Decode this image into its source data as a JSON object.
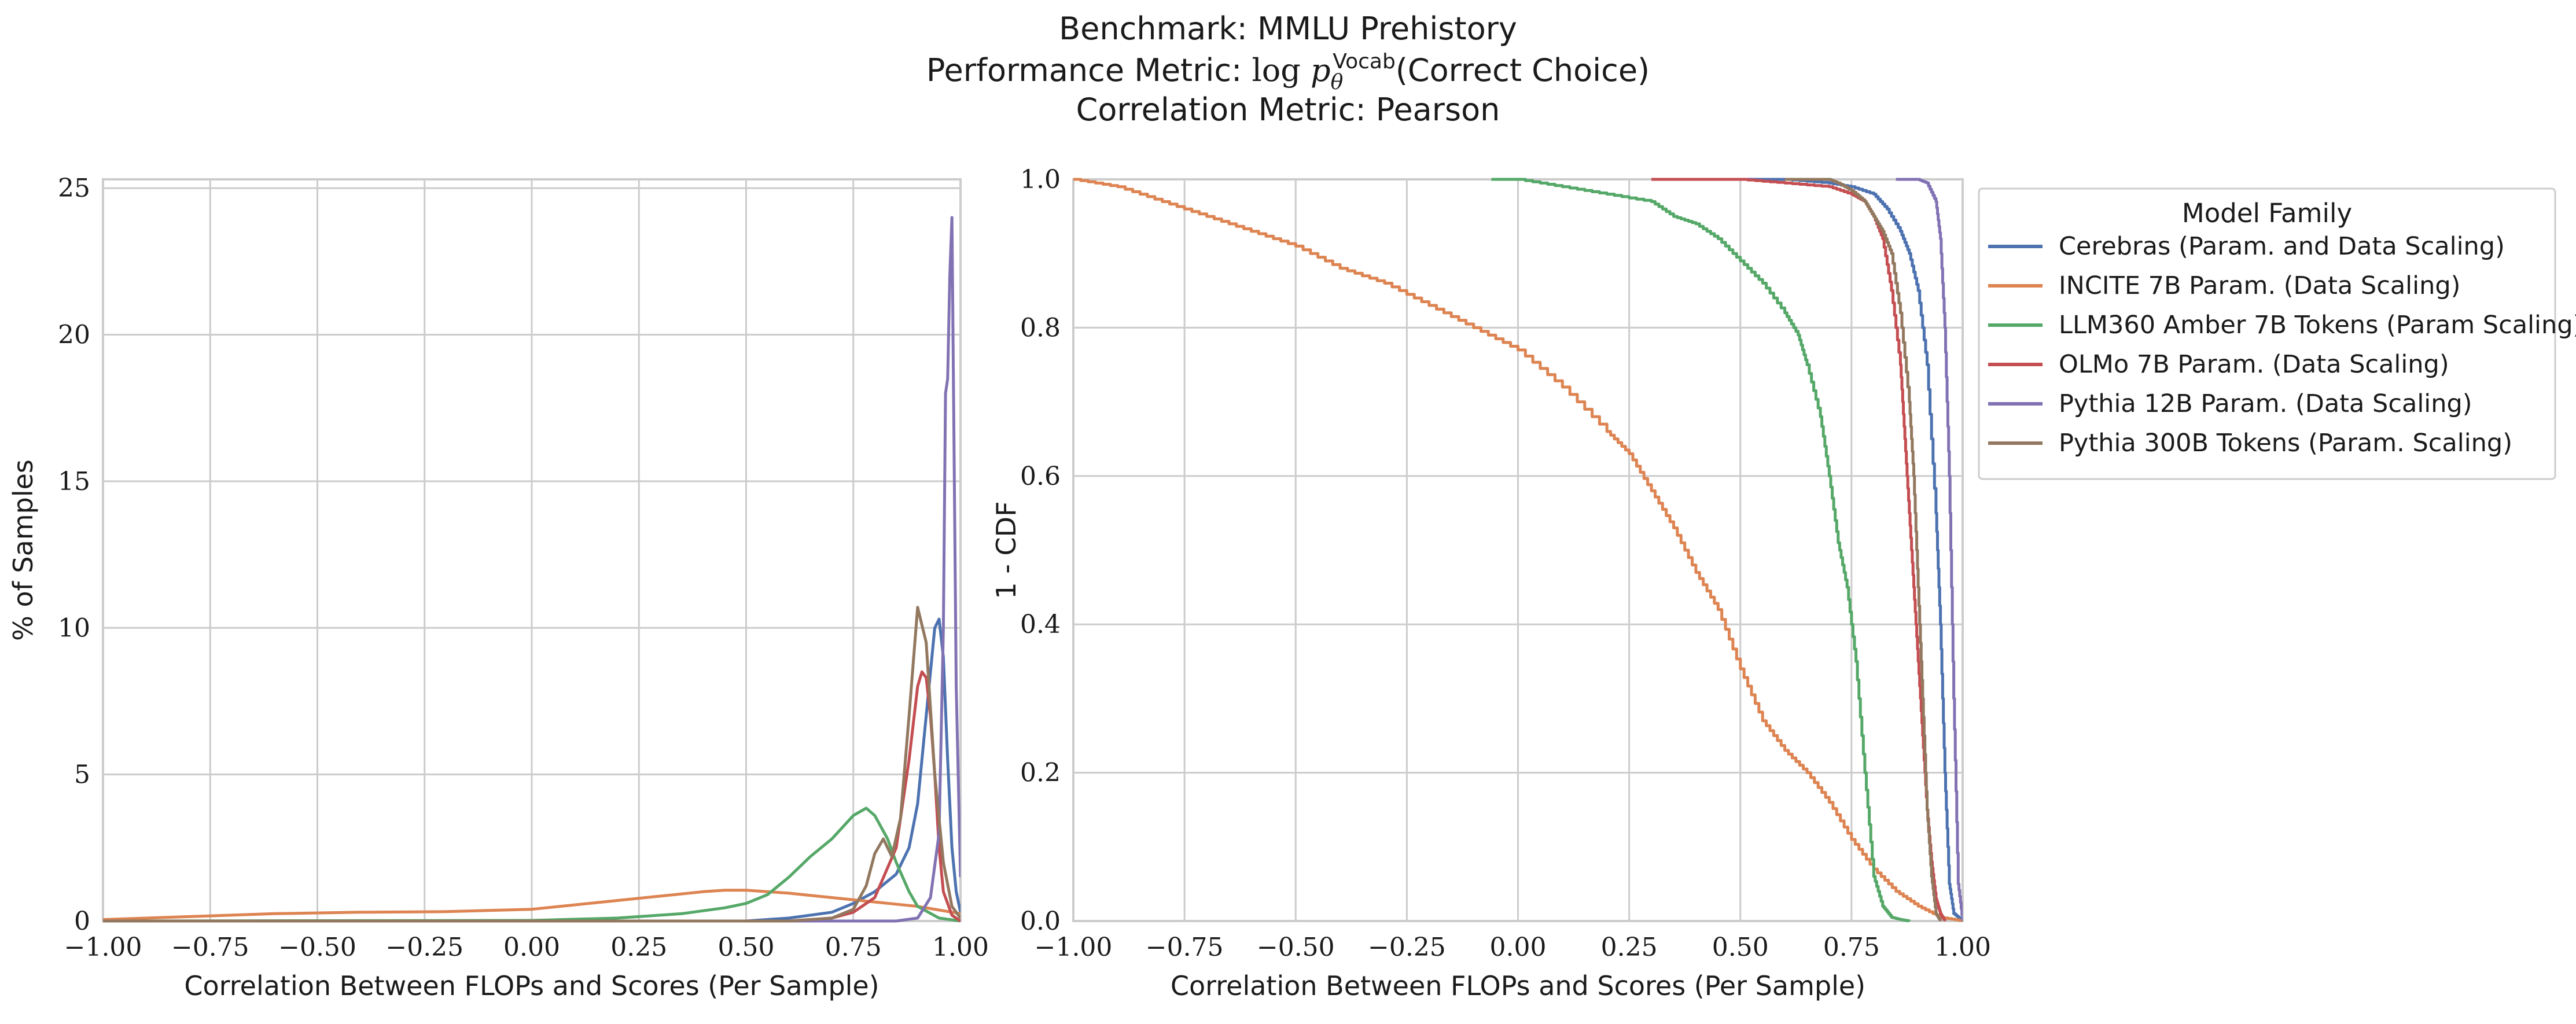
{
  "titles": {
    "line1": "Benchmark: MMLU Prehistory",
    "line2": "Performance Metric: log pθVocab(Correct Choice)",
    "line2_prefix": "Performance Metric: ",
    "line2_log": "log",
    "line2_p": "p",
    "line2_sub": "θ",
    "line2_sup": "Vocab",
    "line2_suffix": "(Correct Choice)",
    "line3": "Correlation Metric: Pearson"
  },
  "legend": {
    "title": "Model Family"
  },
  "chart_data": [
    {
      "type": "line",
      "subtype": "kde",
      "xlabel": "Correlation Between FLOPs and Scores (Per Sample)",
      "ylabel": "% of Samples",
      "xlim": [
        -1.0,
        1.0
      ],
      "ylim": [
        0,
        25.3
      ],
      "xticks": [
        -1.0,
        -0.75,
        -0.5,
        -0.25,
        0.0,
        0.25,
        0.5,
        0.75,
        1.0
      ],
      "xtick_labels": [
        "−1.00",
        "−0.75",
        "−0.50",
        "−0.25",
        "0.00",
        "0.25",
        "0.50",
        "0.75",
        "1.00"
      ],
      "yticks": [
        0,
        5,
        10,
        15,
        20,
        25
      ],
      "ytick_labels": [
        "0",
        "5",
        "10",
        "15",
        "20",
        "25"
      ],
      "grid": true,
      "series": [
        {
          "name": "Cerebras (Param. and Data Scaling)",
          "color": "#4c72b0",
          "x": [
            -1.0,
            0.5,
            0.6,
            0.7,
            0.75,
            0.8,
            0.85,
            0.88,
            0.9,
            0.92,
            0.94,
            0.95,
            0.96,
            0.97,
            0.98,
            0.99,
            1.0
          ],
          "y": [
            0,
            0,
            0.1,
            0.3,
            0.6,
            1.0,
            1.6,
            2.5,
            4.0,
            7.0,
            10.0,
            10.3,
            9.0,
            5.5,
            2.5,
            1.0,
            0.3
          ]
        },
        {
          "name": "INCITE 7B Param. (Data Scaling)",
          "color": "#dd8452",
          "x": [
            -1.0,
            -0.8,
            -0.6,
            -0.4,
            -0.2,
            0.0,
            0.1,
            0.2,
            0.3,
            0.4,
            0.45,
            0.5,
            0.6,
            0.7,
            0.8,
            0.9,
            1.0
          ],
          "y": [
            0.05,
            0.15,
            0.25,
            0.3,
            0.32,
            0.4,
            0.55,
            0.7,
            0.85,
            1.0,
            1.05,
            1.05,
            0.95,
            0.8,
            0.65,
            0.5,
            0.25
          ]
        },
        {
          "name": "LLM360 Amber 7B Tokens (Param Scaling)",
          "color": "#55a868",
          "x": [
            -1.0,
            0.0,
            0.2,
            0.35,
            0.45,
            0.5,
            0.55,
            0.6,
            0.65,
            0.7,
            0.75,
            0.78,
            0.8,
            0.83,
            0.85,
            0.88,
            0.9,
            0.95,
            1.0
          ],
          "y": [
            0,
            0.02,
            0.1,
            0.25,
            0.45,
            0.6,
            0.9,
            1.5,
            2.2,
            2.8,
            3.6,
            3.85,
            3.6,
            2.8,
            2.0,
            1.0,
            0.5,
            0.1,
            0.0
          ]
        },
        {
          "name": "OLMo 7B Param. (Data Scaling)",
          "color": "#c44e52",
          "x": [
            -1.0,
            0.6,
            0.7,
            0.75,
            0.8,
            0.85,
            0.88,
            0.9,
            0.91,
            0.92,
            0.93,
            0.94,
            0.95,
            0.96,
            0.98,
            1.0
          ],
          "y": [
            0,
            0,
            0.1,
            0.3,
            0.8,
            2.5,
            5.5,
            8.0,
            8.5,
            8.3,
            7.0,
            5.0,
            2.5,
            1.0,
            0.2,
            0.0
          ]
        },
        {
          "name": "Pythia 12B Param. (Data Scaling)",
          "color": "#8172b3",
          "x": [
            -1.0,
            0.85,
            0.9,
            0.93,
            0.95,
            0.96,
            0.965,
            0.97,
            0.975,
            0.98,
            0.985,
            0.99,
            1.0
          ],
          "y": [
            0,
            0,
            0.1,
            0.8,
            3.0,
            10.0,
            18.0,
            18.5,
            22.0,
            24.0,
            16.0,
            8.0,
            1.5
          ]
        },
        {
          "name": "Pythia 300B Tokens (Param. Scaling)",
          "color": "#937860",
          "x": [
            -1.0,
            0.6,
            0.7,
            0.75,
            0.78,
            0.8,
            0.82,
            0.84,
            0.86,
            0.88,
            0.9,
            0.92,
            0.94,
            0.96,
            0.98,
            1.0
          ],
          "y": [
            0,
            0,
            0.1,
            0.4,
            1.2,
            2.3,
            2.8,
            2.2,
            3.5,
            7.0,
            10.7,
            9.5,
            5.0,
            2.0,
            0.5,
            0.1
          ]
        }
      ]
    },
    {
      "type": "line",
      "subtype": "survival",
      "xlabel": "Correlation Between FLOPs and Scores (Per Sample)",
      "ylabel": "1 - CDF",
      "xlim": [
        -1.0,
        1.0
      ],
      "ylim": [
        0.0,
        1.0
      ],
      "xticks": [
        -1.0,
        -0.75,
        -0.5,
        -0.25,
        0.0,
        0.25,
        0.5,
        0.75,
        1.0
      ],
      "xtick_labels": [
        "−1.00",
        "−0.75",
        "−0.50",
        "−0.25",
        "0.00",
        "0.25",
        "0.50",
        "0.75",
        "1.00"
      ],
      "yticks": [
        0.0,
        0.2,
        0.4,
        0.6,
        0.8,
        1.0
      ],
      "ytick_labels": [
        "0.0",
        "0.2",
        "0.4",
        "0.6",
        "0.8",
        "1.0"
      ],
      "grid": true,
      "legend_position": "outside-right-top",
      "series": [
        {
          "name": "Cerebras (Param. and Data Scaling)",
          "color": "#4c72b0",
          "x": [
            0.3,
            0.6,
            0.7,
            0.75,
            0.8,
            0.83,
            0.86,
            0.88,
            0.9,
            0.92,
            0.94,
            0.95,
            0.96,
            0.97,
            0.98,
            1.0
          ],
          "y": [
            1.0,
            1.0,
            0.995,
            0.99,
            0.98,
            0.96,
            0.93,
            0.9,
            0.85,
            0.75,
            0.55,
            0.4,
            0.2,
            0.05,
            0.01,
            0.0
          ]
        },
        {
          "name": "INCITE 7B Param. (Data Scaling)",
          "color": "#dd8452",
          "x": [
            -1.0,
            -0.9,
            -0.8,
            -0.7,
            -0.6,
            -0.5,
            -0.4,
            -0.3,
            -0.2,
            -0.1,
            0.0,
            0.1,
            0.2,
            0.25,
            0.3,
            0.35,
            0.4,
            0.45,
            0.5,
            0.55,
            0.6,
            0.65,
            0.7,
            0.75,
            0.8,
            0.85,
            0.9,
            0.95,
            1.0
          ],
          "y": [
            1.0,
            0.99,
            0.97,
            0.95,
            0.93,
            0.91,
            0.88,
            0.86,
            0.83,
            0.8,
            0.77,
            0.72,
            0.66,
            0.63,
            0.58,
            0.53,
            0.47,
            0.42,
            0.34,
            0.27,
            0.23,
            0.2,
            0.16,
            0.11,
            0.07,
            0.04,
            0.02,
            0.005,
            0.0
          ]
        },
        {
          "name": "LLM360 Amber 7B Tokens (Param Scaling)",
          "color": "#55a868",
          "x": [
            -0.06,
            0.0,
            0.1,
            0.2,
            0.3,
            0.35,
            0.4,
            0.45,
            0.5,
            0.55,
            0.6,
            0.63,
            0.65,
            0.68,
            0.7,
            0.72,
            0.74,
            0.76,
            0.78,
            0.8,
            0.82,
            0.84,
            0.86,
            0.88
          ],
          "y": [
            1.0,
            1.0,
            0.99,
            0.98,
            0.97,
            0.95,
            0.94,
            0.92,
            0.89,
            0.86,
            0.82,
            0.79,
            0.75,
            0.68,
            0.6,
            0.51,
            0.45,
            0.35,
            0.2,
            0.06,
            0.02,
            0.005,
            0.002,
            0.0
          ]
        },
        {
          "name": "OLMo 7B Param. (Data Scaling)",
          "color": "#c44e52",
          "x": [
            0.3,
            0.5,
            0.6,
            0.7,
            0.75,
            0.78,
            0.8,
            0.82,
            0.84,
            0.86,
            0.87,
            0.88,
            0.89,
            0.9,
            0.91,
            0.92,
            0.93,
            0.94,
            0.95,
            0.96
          ],
          "y": [
            1.0,
            1.0,
            0.995,
            0.99,
            0.98,
            0.97,
            0.95,
            0.92,
            0.85,
            0.75,
            0.65,
            0.55,
            0.45,
            0.35,
            0.25,
            0.15,
            0.08,
            0.03,
            0.01,
            0.0
          ]
        },
        {
          "name": "Pythia 12B Param. (Data Scaling)",
          "color": "#8172b3",
          "x": [
            0.85,
            0.9,
            0.92,
            0.94,
            0.95,
            0.96,
            0.97,
            0.98,
            0.99,
            1.0
          ],
          "y": [
            1.0,
            1.0,
            0.995,
            0.97,
            0.92,
            0.8,
            0.6,
            0.3,
            0.05,
            0.0
          ]
        },
        {
          "name": "Pythia 300B Tokens (Param. Scaling)",
          "color": "#937860",
          "x": [
            0.6,
            0.7,
            0.72,
            0.75,
            0.78,
            0.8,
            0.82,
            0.84,
            0.86,
            0.88,
            0.89,
            0.9,
            0.91,
            0.92,
            0.93,
            0.94,
            0.95
          ],
          "y": [
            1.0,
            1.0,
            0.995,
            0.985,
            0.97,
            0.95,
            0.93,
            0.9,
            0.82,
            0.7,
            0.6,
            0.45,
            0.3,
            0.15,
            0.06,
            0.01,
            0.0
          ]
        }
      ]
    }
  ]
}
